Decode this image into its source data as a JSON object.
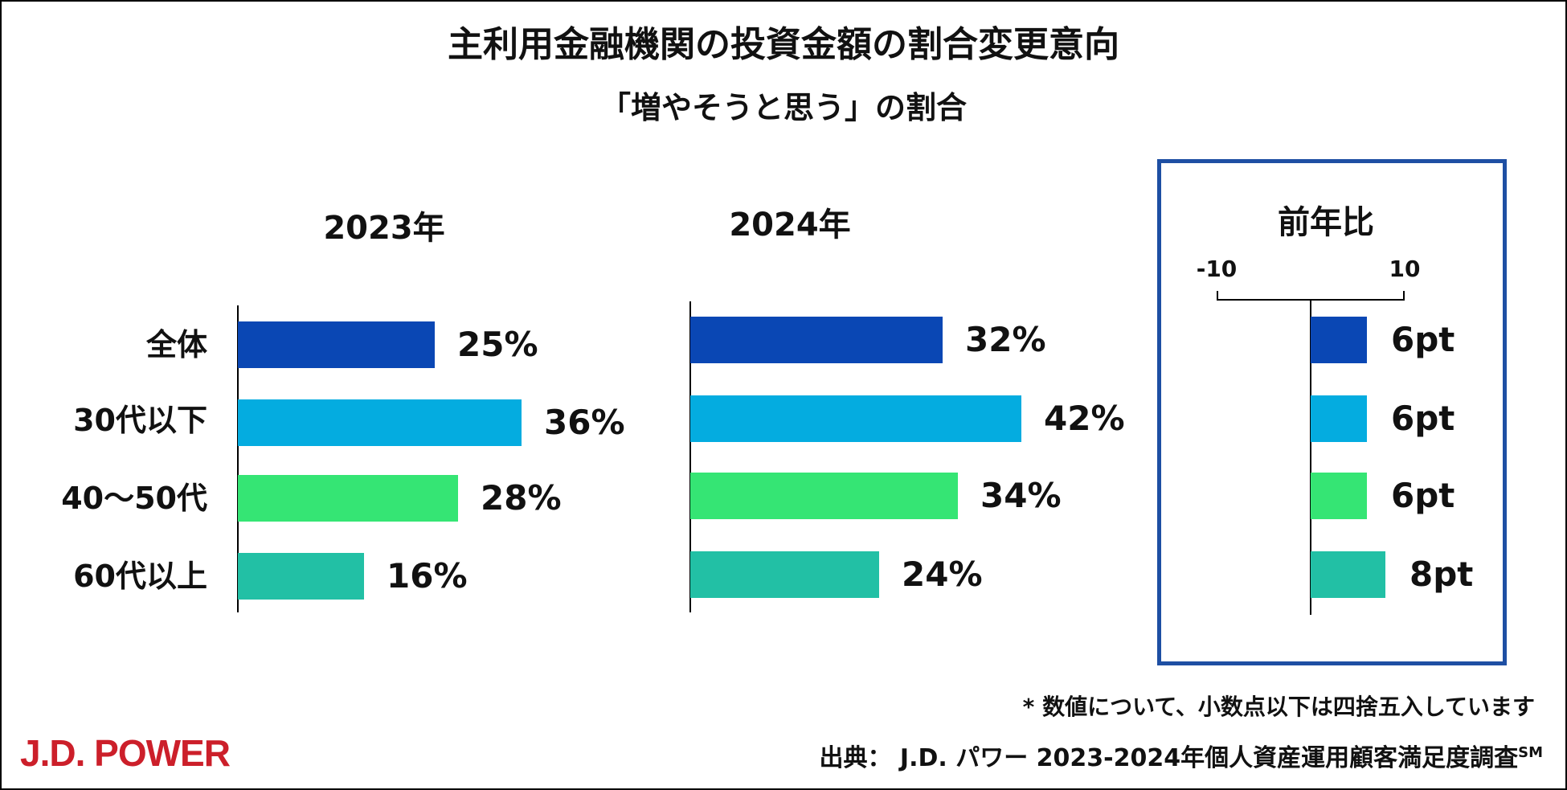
{
  "title": "主利用金融機関の投資金額の割合変更意向",
  "subtitle": "「増やそうと思う」の割合",
  "brand": "J.D. POWER",
  "note": "* 数値について、小数点以下は四捨五入しています",
  "source": {
    "prefix": "出典：  J.D. パワー 2023-2024年個人資産運用顧客満足度調査",
    "sup": "SM"
  },
  "chart_data": [
    {
      "type": "bar",
      "orientation": "horizontal",
      "title": "2023年",
      "categories": [
        "全体",
        "30代以下",
        "40～50代",
        "60代以上"
      ],
      "values": [
        25,
        36,
        28,
        16
      ],
      "labels": [
        "25%",
        "36%",
        "28%",
        "16%"
      ],
      "colors": [
        "#0a47b4",
        "#04ace0",
        "#35e574",
        "#22c0a5"
      ],
      "xlim": [
        0,
        50
      ]
    },
    {
      "type": "bar",
      "orientation": "horizontal",
      "title": "2024年",
      "categories": [
        "全体",
        "30代以下",
        "40～50代",
        "60代以上"
      ],
      "values": [
        32,
        42,
        34,
        24
      ],
      "labels": [
        "32%",
        "42%",
        "34%",
        "24%"
      ],
      "colors": [
        "#0a47b4",
        "#04ace0",
        "#35e574",
        "#22c0a5"
      ],
      "xlim": [
        0,
        50
      ]
    },
    {
      "type": "bar",
      "orientation": "horizontal",
      "title": "前年比",
      "categories": [
        "全体",
        "30代以下",
        "40～50代",
        "60代以上"
      ],
      "values": [
        6,
        6,
        6,
        8
      ],
      "labels": [
        "6pt",
        "6pt",
        "6pt",
        "8pt"
      ],
      "colors": [
        "#0a47b4",
        "#04ace0",
        "#35e574",
        "#22c0a5"
      ],
      "xlim": [
        -10,
        10
      ],
      "ticks": [
        "-10",
        "10"
      ]
    }
  ]
}
